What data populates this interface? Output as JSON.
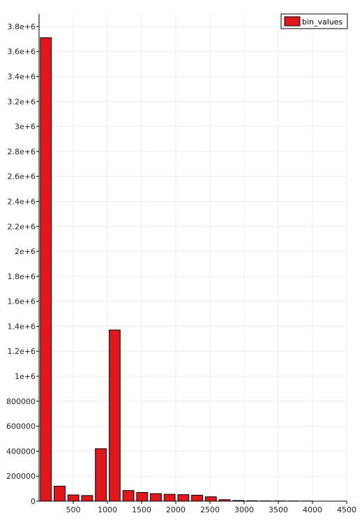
{
  "chart_data": {
    "type": "bar",
    "series": [
      {
        "name": "bin_values",
        "color": "#e3161b",
        "x": [
          100,
          301,
          502,
          703,
          904,
          1106,
          1307,
          1508,
          1709,
          1910,
          2111,
          2312,
          2513,
          2714,
          2915,
          3116,
          3317,
          3518,
          3720,
          3921
        ],
        "values": [
          3710000,
          120000,
          50000,
          45000,
          420000,
          1370000,
          85000,
          70000,
          60000,
          55000,
          52000,
          48000,
          35000,
          12000,
          5000,
          3000,
          2000,
          2000,
          1500,
          1000
        ]
      }
    ],
    "xlim": [
      0,
      4500
    ],
    "ylim": [
      0,
      3900000
    ],
    "x_ticks": [
      500,
      1000,
      1500,
      2000,
      2500,
      3000,
      3500,
      4000,
      4500
    ],
    "x_tick_labels": [
      "500",
      "1000",
      "1500",
      "2000",
      "2500",
      "3000",
      "3500",
      "4000",
      "4500"
    ],
    "y_ticks": [
      0,
      200000,
      400000,
      600000,
      800000,
      1000000,
      1200000,
      1400000,
      1600000,
      1800000,
      2000000,
      2200000,
      2400000,
      2600000,
      2800000,
      3000000,
      3200000,
      3400000,
      3600000,
      3800000
    ],
    "y_tick_labels": [
      "0",
      "200000",
      "400000",
      "600000",
      "800000",
      "1e+6",
      "1.2e+6",
      "1.4e+6",
      "1.6e+6",
      "1.8e+6",
      "2e+6",
      "2.2e+6",
      "2.4e+6",
      "2.6e+6",
      "2.8e+6",
      "3e+6",
      "3.2e+6",
      "3.4e+6",
      "3.6e+6",
      "3.8e+6"
    ],
    "grid": true,
    "legend": {
      "position": "top-right",
      "entries": [
        "bin_values"
      ]
    }
  }
}
